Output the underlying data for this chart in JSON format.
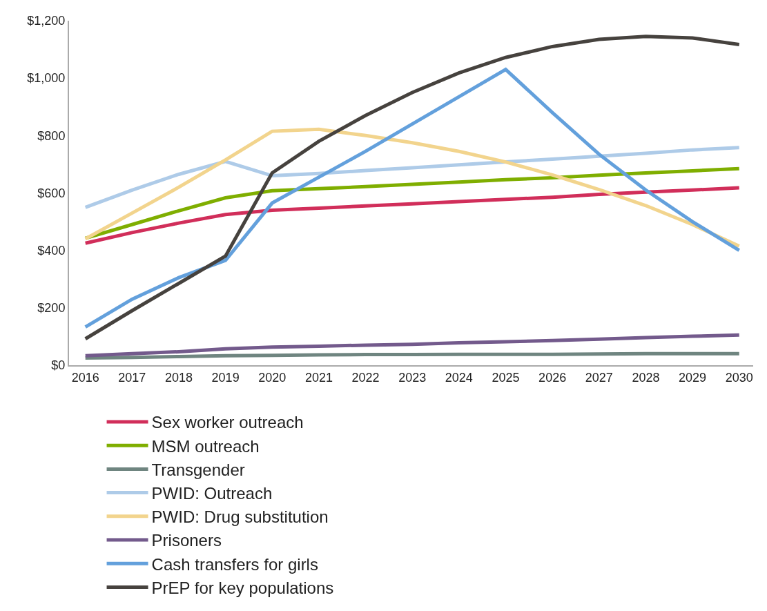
{
  "chart_data": {
    "type": "line",
    "categories": [
      "2016",
      "2017",
      "2018",
      "2019",
      "2020",
      "2021",
      "2022",
      "2023",
      "2024",
      "2025",
      "2026",
      "2027",
      "2028",
      "2029",
      "2030"
    ],
    "ylim": [
      0,
      1200
    ],
    "yticks": [
      {
        "value": 0,
        "label": "$0"
      },
      {
        "value": 200,
        "label": "$200"
      },
      {
        "value": 400,
        "label": "$400"
      },
      {
        "value": 600,
        "label": "$600"
      },
      {
        "value": 800,
        "label": "$800"
      },
      {
        "value": 1000,
        "label": "$1,000"
      },
      {
        "value": 1200,
        "label": "$1,200"
      }
    ],
    "grid": false,
    "legend": "bottom",
    "marker": "none",
    "line_style": "solid",
    "series": [
      {
        "name": "Sex worker outreach",
        "color": "#d12e5a",
        "values": [
          425,
          462,
          495,
          525,
          540,
          547,
          555,
          562,
          570,
          578,
          585,
          595,
          603,
          610,
          618
        ]
      },
      {
        "name": "MSM outreach",
        "color": "#7fae00",
        "values": [
          442,
          490,
          538,
          583,
          608,
          615,
          622,
          630,
          638,
          646,
          653,
          662,
          670,
          677,
          685
        ]
      },
      {
        "name": "Transgender",
        "color": "#6f8580",
        "values": [
          25,
          27,
          30,
          33,
          34,
          36,
          37,
          37,
          38,
          38,
          38,
          39,
          40,
          40,
          40
        ]
      },
      {
        "name": "PWID: Outreach",
        "color": "#aecbe8",
        "values": [
          550,
          610,
          665,
          710,
          660,
          668,
          678,
          688,
          698,
          708,
          718,
          728,
          738,
          750,
          758
        ]
      },
      {
        "name": "PWID: Drug substitution",
        "color": "#f2d48d",
        "values": [
          440,
          530,
          620,
          715,
          815,
          822,
          800,
          775,
          745,
          708,
          663,
          612,
          556,
          490,
          415
        ]
      },
      {
        "name": "Prisoners",
        "color": "#735a8c",
        "values": [
          33,
          40,
          47,
          57,
          63,
          66,
          70,
          73,
          78,
          82,
          86,
          91,
          96,
          101,
          105
        ]
      },
      {
        "name": "Cash transfers for girls",
        "color": "#63a0dc",
        "values": [
          133,
          230,
          305,
          365,
          565,
          655,
          745,
          840,
          935,
          1030,
          880,
          735,
          610,
          500,
          400
        ]
      },
      {
        "name": "PrEP for key populations",
        "color": "#46423e",
        "values": [
          92,
          190,
          285,
          380,
          670,
          780,
          870,
          950,
          1018,
          1072,
          1110,
          1135,
          1145,
          1140,
          1117
        ]
      }
    ]
  }
}
